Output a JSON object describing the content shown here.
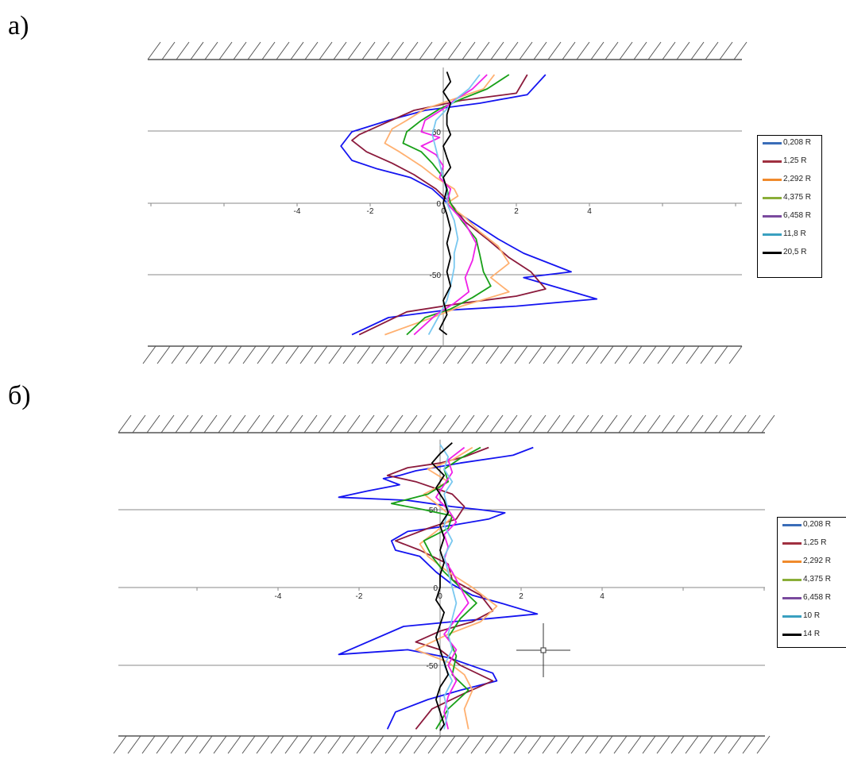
{
  "panels": [
    {
      "label": "а)"
    },
    {
      "label": "б)"
    }
  ],
  "chart_data": [
    {
      "type": "line",
      "xticks": [
        "-4",
        "-2",
        "0",
        "2",
        "4"
      ],
      "yticks": [
        "50",
        "0",
        "-50"
      ],
      "xlim": [
        -6,
        6
      ],
      "legend_position": "right",
      "series": [
        {
          "name": "0,208 R",
          "color": "#3A6DB8",
          "plot_color": "#1414F0"
        },
        {
          "name": "1,25 R",
          "color": "#A03040",
          "plot_color": "#8B1A3C"
        },
        {
          "name": "2,292 R",
          "color": "#F08A2C",
          "plot_color": "#FFB070"
        },
        {
          "name": "4,375 R",
          "color": "#8AAE38",
          "plot_color": "#18A018"
        },
        {
          "name": "6,458 R",
          "color": "#7A4A9E",
          "plot_color": "#F020E8"
        },
        {
          "name": "11,8 R",
          "color": "#3AA0C0",
          "plot_color": "#7AC8F0"
        },
        {
          "name": "20,5 R",
          "color": "#000000",
          "plot_color": "#000000"
        }
      ]
    },
    {
      "type": "line",
      "xticks": [
        "-4",
        "-2",
        "0",
        "2",
        "4"
      ],
      "yticks": [
        "50",
        "0",
        "-50"
      ],
      "xlim": [
        -6,
        6
      ],
      "legend_position": "right",
      "series": [
        {
          "name": "0,208 R",
          "color": "#3A6DB8",
          "plot_color": "#1414F0"
        },
        {
          "name": "1,25 R",
          "color": "#A03040",
          "plot_color": "#8B1A3C"
        },
        {
          "name": "2,292 R",
          "color": "#F08A2C",
          "plot_color": "#FFB070"
        },
        {
          "name": "4,375 R",
          "color": "#8AAE38",
          "plot_color": "#18A018"
        },
        {
          "name": "6,458 R",
          "color": "#7A4A9E",
          "plot_color": "#F020E8"
        },
        {
          "name": "10 R",
          "color": "#3AA0C0",
          "plot_color": "#7AC8F0"
        },
        {
          "name": "14 R",
          "color": "#000000",
          "plot_color": "#000000"
        }
      ]
    }
  ]
}
